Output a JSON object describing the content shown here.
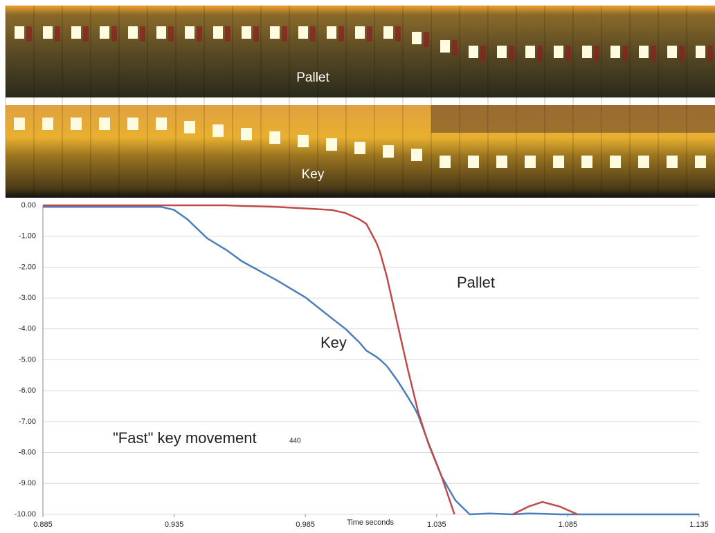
{
  "images": [
    {
      "label": "Pallet"
    },
    {
      "label": "Key"
    }
  ],
  "chart_data": {
    "type": "line",
    "xlabel": "Time seconds",
    "annotations": [
      "Pallet",
      "Key",
      "\"Fast\" key movement",
      "440"
    ],
    "x": [
      0.885,
      0.9,
      0.915,
      0.93,
      0.935,
      0.94,
      0.9476,
      0.955,
      0.9608,
      0.974,
      0.985,
      0.995,
      1.0003,
      1.0055,
      1.0082,
      1.012,
      1.0134,
      1.016,
      1.02,
      1.024,
      1.0266,
      1.028,
      1.0318,
      1.037,
      1.0418,
      1.0424,
      1.0476,
      1.055,
      1.064,
      1.07,
      1.0753,
      1.082,
      1.0887,
      1.1,
      1.12,
      1.135
    ],
    "series": [
      {
        "name": "Key",
        "color": "#4a7ebb",
        "values": [
          -0.05,
          -0.05,
          -0.05,
          -0.05,
          -0.15,
          -0.45,
          -1.07,
          -1.45,
          -1.81,
          -2.42,
          -2.98,
          -3.65,
          -4.0,
          -4.43,
          -4.7,
          -4.9,
          -4.99,
          -5.2,
          -5.66,
          -6.2,
          -6.56,
          -6.8,
          -7.67,
          -8.79,
          -9.5,
          -9.57,
          -10,
          -9.97,
          -10,
          -9.97,
          -9.98,
          -10,
          -10,
          -10,
          -10,
          -10
        ]
      },
      {
        "name": "Pallet",
        "color": "#be4b48",
        "values": [
          0,
          0,
          0,
          0,
          0,
          0,
          0,
          0,
          -0.02,
          -0.05,
          -0.1,
          -0.15,
          -0.25,
          -0.45,
          -0.6,
          -1.2,
          -1.5,
          -2.3,
          -3.8,
          -5.3,
          -6.2,
          -6.7,
          -7.7,
          -8.8,
          -10,
          null,
          null,
          null,
          -10,
          -9.75,
          -9.6,
          -9.75,
          -10,
          null,
          null,
          null
        ]
      }
    ],
    "xlim": [
      0.885,
      1.135
    ],
    "xticks": [
      0.885,
      0.935,
      0.985,
      1.035,
      1.085,
      1.135
    ],
    "ylim": [
      -10,
      0
    ],
    "yticks": [
      {
        "value": 0,
        "label": "0.00"
      },
      {
        "value": -1,
        "label": "-1.00"
      },
      {
        "value": -2,
        "label": "-2.00"
      },
      {
        "value": -3,
        "label": "-3.00"
      },
      {
        "value": -4,
        "label": "-4.00"
      },
      {
        "value": -5,
        "label": "-5.00"
      },
      {
        "value": -6,
        "label": "-6.00"
      },
      {
        "value": -7,
        "label": "-7.00"
      },
      {
        "value": -8,
        "label": "-8.00"
      },
      {
        "value": -9,
        "label": "-9.00"
      },
      {
        "value": -10,
        "label": "-10.00"
      }
    ],
    "grid": true
  }
}
